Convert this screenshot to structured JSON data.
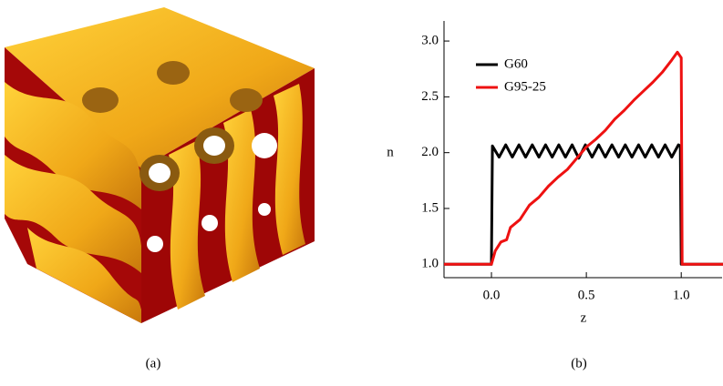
{
  "captions": [
    "(a)",
    "(b)"
  ],
  "chart_data": {
    "type": "line",
    "xlabel": "z",
    "ylabel": "n",
    "xlim": [
      -0.25,
      1.22
    ],
    "ylim": [
      0.88,
      3.18
    ],
    "xticks": [
      {
        "value": 0,
        "label": "0.0"
      },
      0.5,
      {
        "value": 1,
        "label": "1.0"
      }
    ],
    "yticks": [
      {
        "value": 1,
        "label": "1.0"
      },
      1.5,
      {
        "value": 2,
        "label": "2.0"
      },
      2.5,
      {
        "value": 3,
        "label": "3.0"
      }
    ],
    "legend": "upper left",
    "series": [
      {
        "name": "G60",
        "color": "#000000",
        "x": [
          -0.25,
          0,
          0.005,
          0.04,
          0.075,
          0.11,
          0.145,
          0.18,
          0.215,
          0.25,
          0.285,
          0.32,
          0.355,
          0.39,
          0.425,
          0.46,
          0.495,
          0.53,
          0.565,
          0.6,
          0.635,
          0.67,
          0.705,
          0.74,
          0.775,
          0.81,
          0.845,
          0.88,
          0.915,
          0.95,
          0.985,
          0.995,
          1.0,
          1.22
        ],
        "values": [
          1.0,
          1.0,
          2.06,
          1.96,
          2.07,
          1.96,
          2.07,
          1.96,
          2.07,
          1.96,
          2.07,
          1.96,
          2.07,
          1.96,
          2.07,
          1.95,
          2.07,
          1.96,
          2.07,
          1.96,
          2.07,
          1.96,
          2.07,
          1.96,
          2.07,
          1.96,
          2.07,
          1.96,
          2.07,
          1.96,
          2.07,
          2.06,
          1.0,
          1.0
        ]
      },
      {
        "name": "G95-25",
        "color": "#ee1111",
        "x": [
          -0.25,
          0,
          0.02,
          0.05,
          0.08,
          0.1,
          0.15,
          0.2,
          0.25,
          0.3,
          0.35,
          0.4,
          0.45,
          0.5,
          0.55,
          0.6,
          0.65,
          0.7,
          0.75,
          0.8,
          0.85,
          0.9,
          0.95,
          0.98,
          1.0,
          1.005,
          1.22
        ],
        "values": [
          1.0,
          1.0,
          1.12,
          1.2,
          1.22,
          1.33,
          1.4,
          1.53,
          1.6,
          1.7,
          1.78,
          1.85,
          1.95,
          2.05,
          2.12,
          2.2,
          2.3,
          2.38,
          2.47,
          2.55,
          2.63,
          2.72,
          2.83,
          2.9,
          2.85,
          1.0,
          1.0
        ]
      }
    ]
  }
}
